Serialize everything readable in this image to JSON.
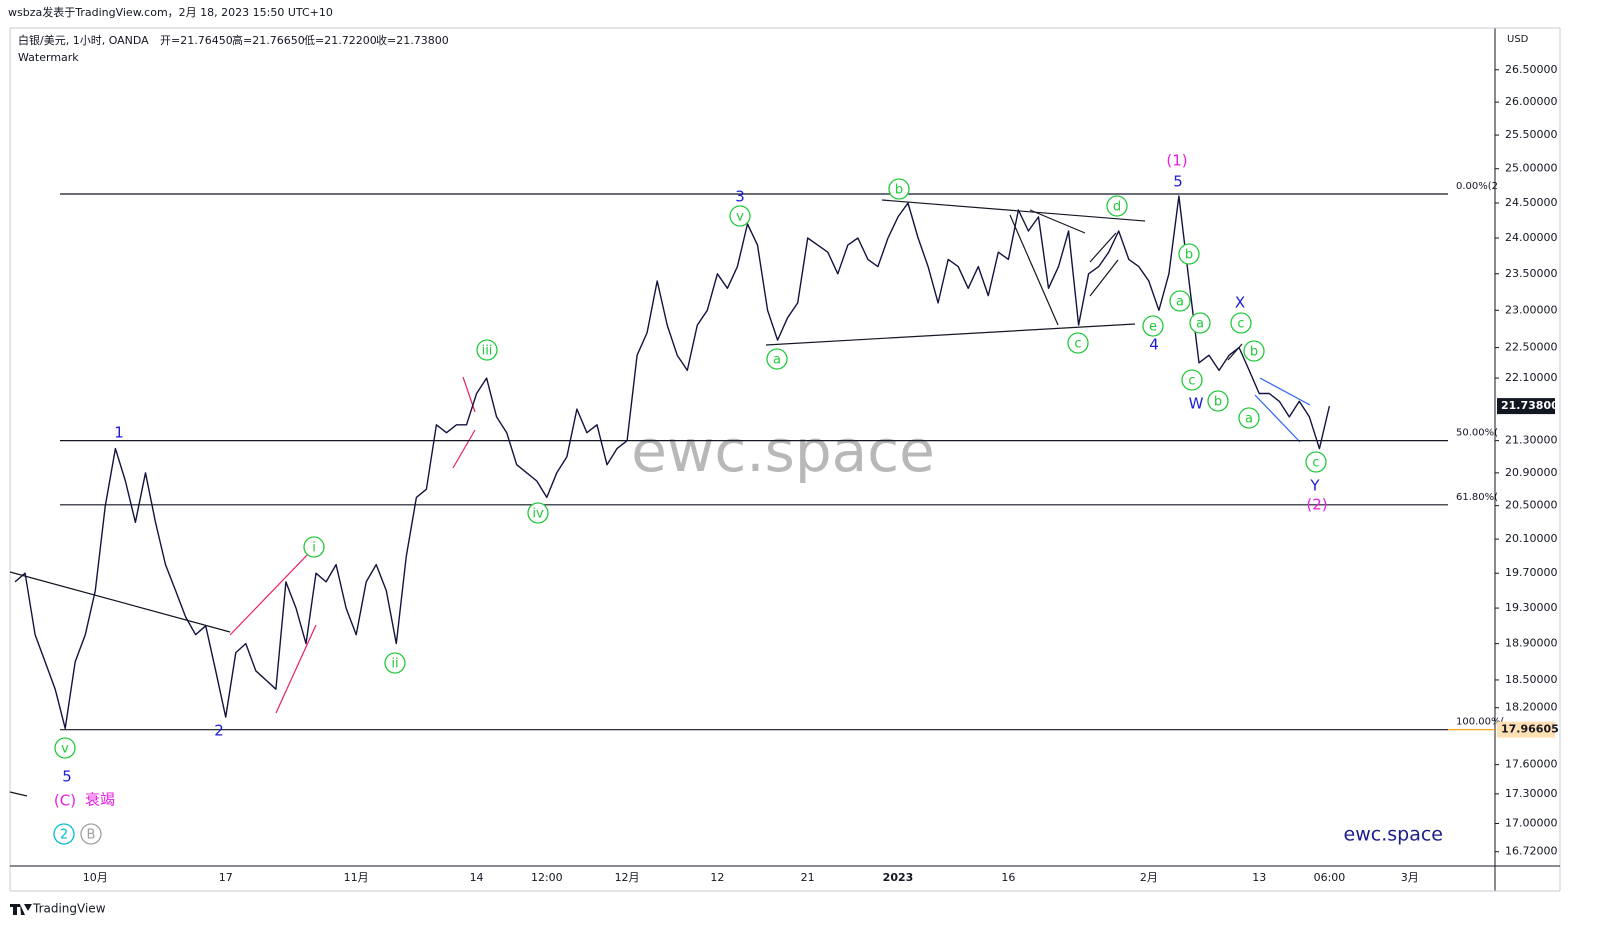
{
  "header": {
    "publisher": "wsbza发表于TradingView.com，2月 18, 2023 15:50 UTC+10",
    "symbol": "白银/美元, 1小时, OANDA",
    "open": "开=21.76450",
    "high": "高=21.76650",
    "low": "低=21.72200",
    "close": "收=21.73800",
    "watermark_label": "Watermark",
    "watermark": "ewc.space",
    "brand": "ewc.space",
    "logo": "TradingView"
  },
  "chart_data": {
    "type": "line",
    "color": "#131340",
    "log_scale": true,
    "y_axis_label": "USD",
    "categories": [
      null,
      null,
      null,
      null,
      null,
      null,
      null,
      null,
      "10月",
      null,
      null,
      null,
      null,
      null,
      null,
      null,
      null,
      null,
      null,
      null,
      null,
      "17",
      null,
      null,
      null,
      null,
      null,
      null,
      null,
      null,
      null,
      null,
      null,
      null,
      "11月",
      null,
      null,
      null,
      null,
      null,
      null,
      null,
      null,
      null,
      null,
      null,
      "14",
      null,
      null,
      null,
      null,
      null,
      null,
      "12:00",
      null,
      null,
      null,
      null,
      null,
      null,
      null,
      "12月",
      null,
      null,
      null,
      null,
      null,
      null,
      null,
      null,
      "12",
      null,
      null,
      null,
      null,
      null,
      null,
      null,
      null,
      "21",
      null,
      null,
      null,
      null,
      null,
      null,
      null,
      null,
      "2023",
      null,
      null,
      null,
      null,
      null,
      null,
      null,
      null,
      null,
      null,
      "16",
      null,
      null,
      null,
      null,
      null,
      null,
      null,
      null,
      null,
      null,
      null,
      null,
      null,
      "2月",
      null,
      null,
      null,
      null,
      null,
      null,
      null,
      null,
      null,
      null,
      "13",
      null,
      null,
      null,
      null,
      null,
      null,
      "06:00",
      null,
      null,
      null,
      null,
      null,
      null,
      null,
      "3月",
      null,
      null,
      null,
      null,
      null,
      null,
      null,
      null
    ],
    "values": [
      19.6,
      19.7,
      19.0,
      18.7,
      18.4,
      17.98,
      18.7,
      19.0,
      19.5,
      20.5,
      21.2,
      20.8,
      20.3,
      20.9,
      20.3,
      19.8,
      19.5,
      19.2,
      19.0,
      19.1,
      18.6,
      18.1,
      18.8,
      18.9,
      18.6,
      18.5,
      18.4,
      19.6,
      19.3,
      18.9,
      19.7,
      19.6,
      19.8,
      19.3,
      19.0,
      19.6,
      19.8,
      19.5,
      18.9,
      19.9,
      20.6,
      20.7,
      21.5,
      21.4,
      21.5,
      21.5,
      21.9,
      22.1,
      21.6,
      21.4,
      21.0,
      20.9,
      20.8,
      20.6,
      20.9,
      21.1,
      21.7,
      21.4,
      21.5,
      21.0,
      21.2,
      21.3,
      22.4,
      22.7,
      23.4,
      22.8,
      22.4,
      22.2,
      22.8,
      23.0,
      23.5,
      23.3,
      23.6,
      24.2,
      23.9,
      23.0,
      22.6,
      22.9,
      23.1,
      24.0,
      23.9,
      23.8,
      23.5,
      23.9,
      24.0,
      23.7,
      23.6,
      24.0,
      24.3,
      24.5,
      24.0,
      23.6,
      23.1,
      23.7,
      23.6,
      23.3,
      23.6,
      23.2,
      23.8,
      23.7,
      24.4,
      24.1,
      24.3,
      23.3,
      23.6,
      24.1,
      22.8,
      23.5,
      23.6,
      23.8,
      24.1,
      23.7,
      23.6,
      23.4,
      23.0,
      23.5,
      24.6,
      23.4,
      22.3,
      22.4,
      22.2,
      22.4,
      22.5,
      22.2,
      21.9,
      21.9,
      21.8,
      21.6,
      21.8,
      21.6,
      21.2,
      21.738,
      null,
      null,
      null,
      null,
      null,
      null,
      null,
      null,
      null,
      null,
      null,
      null,
      null,
      null,
      null,
      null
    ],
    "ylim": [
      16.58,
      27.16
    ],
    "yticks": [
      {
        "value": 26.5,
        "label": "26.50000"
      },
      {
        "value": 26.0,
        "label": "26.00000"
      },
      {
        "value": 25.5,
        "label": "25.50000"
      },
      {
        "value": 25.0,
        "label": "25.00000"
      },
      {
        "value": 24.5,
        "label": "24.50000"
      },
      {
        "value": 24.0,
        "label": "24.00000"
      },
      {
        "value": 23.5,
        "label": "23.50000"
      },
      {
        "value": 23.0,
        "label": "23.00000"
      },
      {
        "value": 22.5,
        "label": "22.50000"
      },
      {
        "value": 22.1,
        "label": "22.10000"
      },
      {
        "value": 21.3,
        "label": "21.30000"
      },
      {
        "value": 20.9,
        "label": "20.90000"
      },
      {
        "value": 20.5,
        "label": "20.50000"
      },
      {
        "value": 20.1,
        "label": "20.10000"
      },
      {
        "value": 19.7,
        "label": "19.70000"
      },
      {
        "value": 19.3,
        "label": "19.30000"
      },
      {
        "value": 18.9,
        "label": "18.90000"
      },
      {
        "value": 18.5,
        "label": "18.50000"
      },
      {
        "value": 18.2,
        "label": "18.20000"
      },
      {
        "value": 17.6,
        "label": "17.60000"
      },
      {
        "value": 17.3,
        "label": "17.30000"
      },
      {
        "value": 17.0,
        "label": "17.00000"
      },
      {
        "value": 16.72,
        "label": "16.72000"
      }
    ],
    "price_labels": [
      {
        "value": 21.738,
        "label": "21.73800",
        "background": "#131722",
        "text_color": "#ffffff"
      },
      {
        "value": 17.96605,
        "label": "17.96605",
        "background": "#ffe0b2",
        "text_color": "#131722"
      }
    ],
    "fib_levels": [
      {
        "value": 24.63,
        "label": "0.00%(2"
      },
      {
        "value": 21.3,
        "label": "50.00%("
      },
      {
        "value": 20.51,
        "label": "61.80%("
      },
      {
        "value": 17.96605,
        "label": "100.00%("
      }
    ],
    "annotations": [
      {
        "text": "1",
        "color": "#1c1cd6"
      },
      {
        "text": "2",
        "color": "#1c1cd6"
      },
      {
        "text": "3",
        "color": "#1c1cd6"
      },
      {
        "text": "4",
        "color": "#1c1cd6"
      },
      {
        "text": "5",
        "color": "#1c1cd6"
      },
      {
        "text": "(1)",
        "color": "#e91ee0"
      },
      {
        "text": "5",
        "color": "#1c1cd6"
      },
      {
        "text": "(C)",
        "color": "#e91ee0"
      },
      {
        "text": "衰竭",
        "color": "#e91ee0"
      },
      {
        "text": "2",
        "color": "#00bcd4",
        "circled": true
      },
      {
        "text": "B",
        "color": "#9e9e9e",
        "circled": true
      },
      {
        "text": "W",
        "color": "#1c1cd6"
      },
      {
        "text": "X",
        "color": "#1c1cd6"
      },
      {
        "text": "Y",
        "color": "#1c1cd6"
      },
      {
        "text": "(2)",
        "color": "#e91ee0"
      },
      {
        "text": "v",
        "color": "#22c93a",
        "circled": true
      },
      {
        "text": "i",
        "color": "#22c93a",
        "circled": true
      },
      {
        "text": "ii",
        "color": "#22c93a",
        "circled": true
      },
      {
        "text": "iii",
        "color": "#22c93a",
        "circled": true
      },
      {
        "text": "iv",
        "color": "#22c93a",
        "circled": true
      },
      {
        "text": "v",
        "color": "#22c93a",
        "circled": true
      },
      {
        "text": "a",
        "color": "#22c93a",
        "circled": true
      },
      {
        "text": "b",
        "color": "#22c93a",
        "circled": true
      },
      {
        "text": "c",
        "color": "#22c93a",
        "circled": true
      },
      {
        "text": "d",
        "color": "#22c93a",
        "circled": true
      },
      {
        "text": "e",
        "color": "#22c93a",
        "circled": true
      },
      {
        "text": "a",
        "color": "#22c93a",
        "circled": true
      },
      {
        "text": "b",
        "color": "#22c93a",
        "circled": true
      },
      {
        "text": "a",
        "color": "#22c93a",
        "circled": true
      },
      {
        "text": "c",
        "color": "#22c93a",
        "circled": true
      },
      {
        "text": "b",
        "color": "#22c93a",
        "circled": true
      },
      {
        "text": "c",
        "color": "#22c93a",
        "circled": true
      },
      {
        "text": "b",
        "color": "#22c93a",
        "circled": true
      },
      {
        "text": "a",
        "color": "#22c93a",
        "circled": true
      },
      {
        "text": "c",
        "color": "#22c93a",
        "circled": true
      }
    ]
  }
}
